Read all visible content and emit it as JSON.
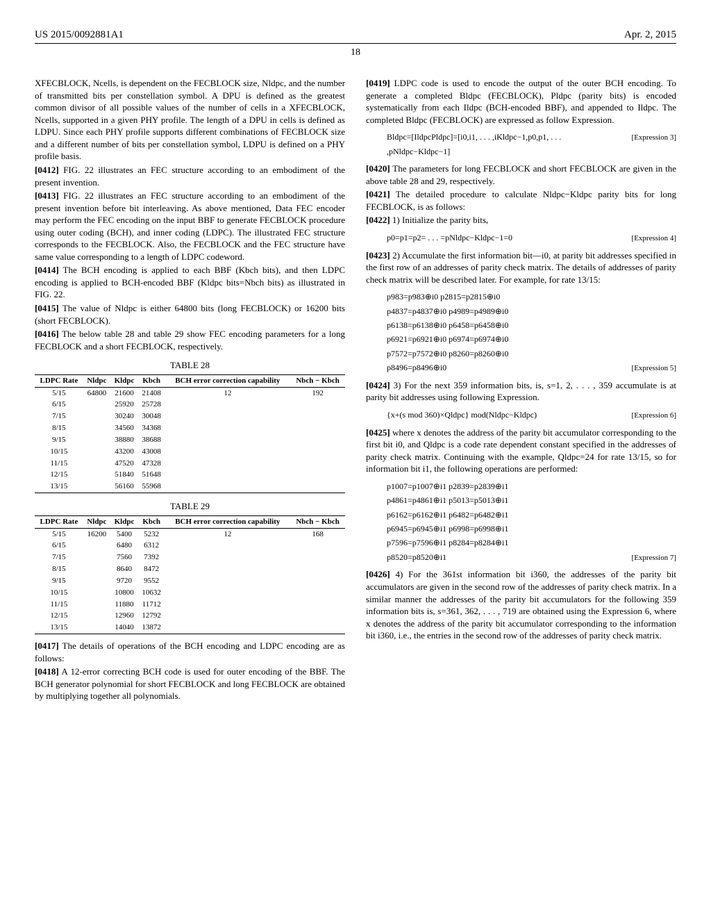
{
  "header": {
    "pub_number": "US 2015/0092881A1",
    "date": "Apr. 2, 2015"
  },
  "page_number": "18",
  "left": {
    "intro": "XFECBLOCK, Ncells, is dependent on the FECBLOCK size, Nldpc, and the number of transmitted bits per constellation symbol. A DPU is defined as the greatest common divisor of all possible values of the number of cells in a XFECBLOCK, Ncells, supported in a given PHY profile. The length of a DPU in cells is defined as LDPU. Since each PHY profile supports different combinations of FECBLOCK size and a different number of bits per constellation symbol, LDPU is defined on a PHY profile basis.",
    "p0412": "FIG. 22 illustrates an FEC structure according to an embodiment of the present invention.",
    "p0413": "FIG. 22 illustrates an FEC structure according to an embodiment of the present invention before bit interleaving. As above mentioned, Data FEC encoder may perform the FEC encoding on the input BBF to generate FECBLOCK procedure using outer coding (BCH), and inner coding (LDPC). The illustrated FEC structure corresponds to the FECBLOCK. Also, the FECBLOCK and the FEC structure have same value corresponding to a length of LDPC codeword.",
    "p0414": "The BCH encoding is applied to each BBF (Kbch bits), and then LDPC encoding is applied to BCH-encoded BBF (Kldpc bits=Nbch bits) as illustrated in FIG. 22.",
    "p0415": "The value of Nldpc is either 64800 bits (long FECBLOCK) or 16200 bits (short FECBLOCK).",
    "p0416": "The below table 28 and table 29 show FEC encoding parameters for a long FECBLOCK and a short FECBLOCK, respectively.",
    "p0417": "The details of operations of the BCH encoding and LDPC encoding are as follows:",
    "p0418": "A 12-error correcting BCH code is used for outer encoding of the BBF. The BCH generator polynomial for short FECBLOCK and long FECBLOCK are obtained by multiplying together all polynomials."
  },
  "table28": {
    "title": "TABLE 28",
    "headers": [
      "LDPC Rate",
      "Nldpc",
      "Kldpc",
      "Kbch",
      "BCH error correction capability",
      "Nbch − Kbch"
    ],
    "rows": [
      [
        "5/15",
        "64800",
        "21600",
        "21408",
        "12",
        "192"
      ],
      [
        "6/15",
        "",
        "25920",
        "25728",
        "",
        ""
      ],
      [
        "7/15",
        "",
        "30240",
        "30048",
        "",
        ""
      ],
      [
        "8/15",
        "",
        "34560",
        "34368",
        "",
        ""
      ],
      [
        "9/15",
        "",
        "38880",
        "38688",
        "",
        ""
      ],
      [
        "10/15",
        "",
        "43200",
        "43008",
        "",
        ""
      ],
      [
        "11/15",
        "",
        "47520",
        "47328",
        "",
        ""
      ],
      [
        "12/15",
        "",
        "51840",
        "51648",
        "",
        ""
      ],
      [
        "13/15",
        "",
        "56160",
        "55968",
        "",
        ""
      ]
    ]
  },
  "table29": {
    "title": "TABLE 29",
    "headers": [
      "LDPC Rate",
      "Nldpc",
      "Kldpc",
      "Kbch",
      "BCH error correction capability",
      "Nbch − Kbch"
    ],
    "rows": [
      [
        "5/15",
        "16200",
        "5400",
        "5232",
        "12",
        "168"
      ],
      [
        "6/15",
        "",
        "6480",
        "6312",
        "",
        ""
      ],
      [
        "7/15",
        "",
        "7560",
        "7392",
        "",
        ""
      ],
      [
        "8/15",
        "",
        "8640",
        "8472",
        "",
        ""
      ],
      [
        "9/15",
        "",
        "9720",
        "9552",
        "",
        ""
      ],
      [
        "10/15",
        "",
        "10800",
        "10632",
        "",
        ""
      ],
      [
        "11/15",
        "",
        "11880",
        "11712",
        "",
        ""
      ],
      [
        "12/15",
        "",
        "12960",
        "12792",
        "",
        ""
      ],
      [
        "13/15",
        "",
        "14040",
        "13872",
        "",
        ""
      ]
    ]
  },
  "right": {
    "p0419": "LDPC code is used to encode the output of the outer BCH encoding. To generate a completed Bldpc (FECBLOCK), Pldpc (parity bits) is encoded systematically from each Ildpc (BCH-encoded BBF), and appended to Ildpc. The completed Bldpc (FECBLOCK) are expressed as follow Expression.",
    "expr3": "Bldpc=[IldpcPldpc]=[i0,i1, . . . ,iKldpc−1,p0,p1, . . . ,pNldpc−Kldpc−1]",
    "expr3_label": "[Expression 3]",
    "p0420": "The parameters for long FECBLOCK and short FECBLOCK are given in the above table 28 and 29, respectively.",
    "p0421": "The detailed procedure to calculate Nldpc−Kldpc parity bits for long FECBLOCK, is as follows:",
    "p0422": "1) Initialize the parity bits,",
    "expr4": "p0=p1=p2= . . . =pNldpc−Kldpc−1=0",
    "expr4_label": "[Expression 4]",
    "p0423": "2) Accumulate the first information bit—i0, at parity bit addresses specified in the first row of an addresses of parity check matrix. The details of addresses of parity check matrix will be described later. For example, for rate 13/15:",
    "expr5_lines": [
      "p983=p983⊕i0 p2815=p2815⊕i0",
      "p4837=p4837⊕i0 p4989=p4989⊕i0",
      "p6138=p6138⊕i0 p6458=p6458⊕i0",
      "p6921=p6921⊕i0 p6974=p6974⊕i0",
      "p7572=p7572⊕i0 p8260=p8260⊕i0",
      "p8496=p8496⊕i0"
    ],
    "expr5_label": "[Expression 5]",
    "p0424": "3) For the next 359 information bits, is, s=1, 2, . . . , 359 accumulate is at parity bit addresses using following Expression.",
    "expr6": "{x+(s mod 360)×Qldpc} mod(Nldpc−Kldpc)",
    "expr6_label": "[Expression 6]",
    "p0425": "where x denotes the address of the parity bit accumulator corresponding to the first bit i0, and Qldpc is a code rate dependent constant specified in the addresses of parity check matrix. Continuing with the example, Qldpc=24 for rate 13/15, so for information bit i1, the following operations are performed:",
    "expr7_lines": [
      "p1007=p1007⊕i1 p2839=p2839⊕i1",
      "p4861=p4861⊕i1 p5013=p5013⊕i1",
      "p6162=p6162⊕i1 p6482=p6482⊕i1",
      "p6945=p6945⊕i1 p6998=p6998⊕i1",
      "p7596=p7596⊕i1 p8284=p8284⊕i1",
      "p8520=p8520⊕i1"
    ],
    "expr7_label": "[Expression 7]",
    "p0426": "4) For the 361st information bit i360, the addresses of the parity bit accumulators are given in the second row of the addresses of parity check matrix. In a similar manner the addresses of the parity bit accumulators for the following 359 information bits is, s=361, 362, . . . , 719 are obtained using the Expression 6, where x denotes the address of the parity bit accumulator corresponding to the information bit i360, i.e., the entries in the second row of the addresses of parity check matrix."
  }
}
